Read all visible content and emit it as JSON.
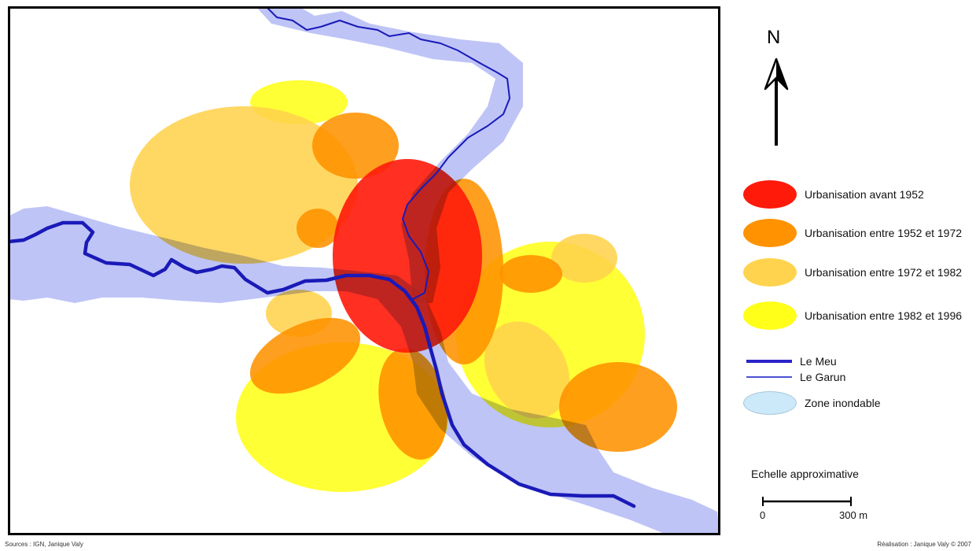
{
  "north": {
    "label": "N"
  },
  "legend": [
    {
      "key": "avant-1952",
      "label": "Urbanisation avant 1952",
      "color": "#ff1a0a",
      "kind": "ellipse"
    },
    {
      "key": "1952-1972",
      "label": "Urbanisation entre 1952 et 1972",
      "color": "#ff9200",
      "kind": "ellipse"
    },
    {
      "key": "1972-1982",
      "label": "Urbanisation entre 1972 et 1982",
      "color": "#ffd34d",
      "kind": "ellipse"
    },
    {
      "key": "1982-1996",
      "label": "Urbanisation entre 1982 et 1996",
      "color": "#ffff1a",
      "kind": "ellipse"
    },
    {
      "key": "meu",
      "label": "Le Meu",
      "color": "#2b23c8",
      "kind": "thick-line"
    },
    {
      "key": "garun",
      "label": "Le Garun",
      "color": "#4a52d6",
      "kind": "thin-line"
    },
    {
      "key": "inondable",
      "label": "Zone inondable",
      "color": "#cce9f9",
      "kind": "ellipse"
    }
  ],
  "scale": {
    "title": "Echelle approximative",
    "start": "0",
    "end": "300 m"
  },
  "footer": {
    "sources": "Sources : IGN, Janique Valy",
    "credit": "Réalisation : Janique Valy © 2007"
  },
  "map_colors": {
    "flood": "#b3baf5",
    "river": "#1a1ab8"
  }
}
